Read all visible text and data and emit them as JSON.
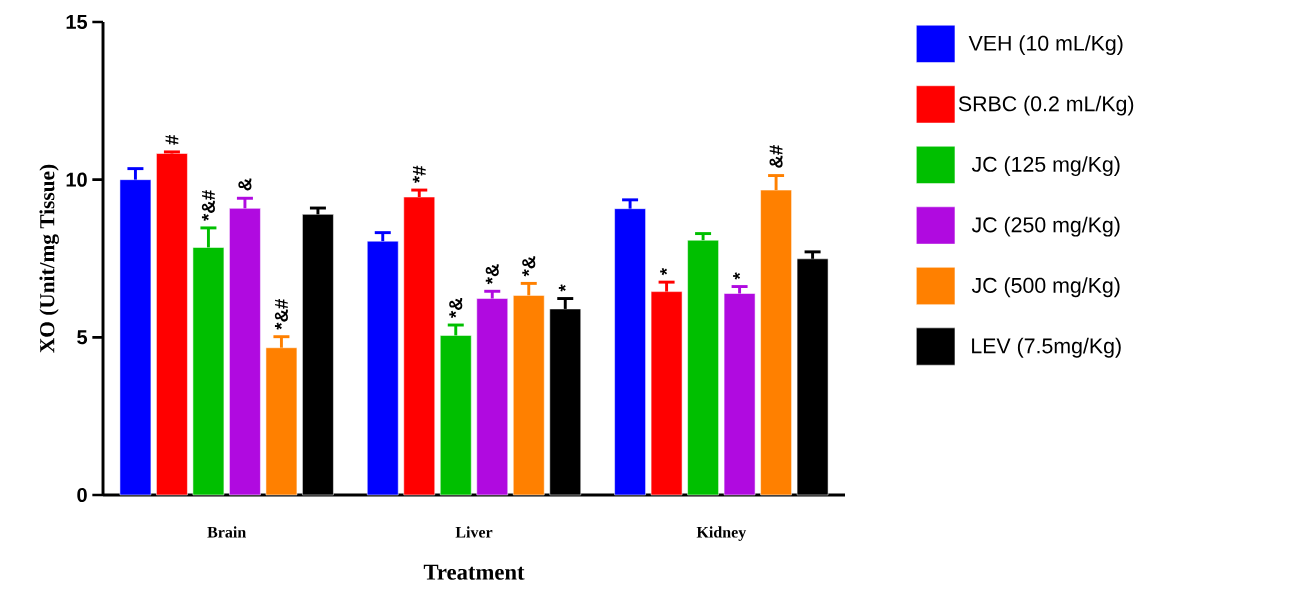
{
  "chart_data": {
    "type": "bar",
    "xlabel": "Treatment",
    "ylabel": "XO (Unit/mg Tissue)",
    "categories": [
      "Brain",
      "Liver",
      "Kidney"
    ],
    "ylim": [
      0,
      15
    ],
    "yticks": [
      0,
      5,
      10,
      15
    ],
    "legend": "right",
    "series": [
      {
        "name": "VEH (10 mL/Kg)",
        "color": "#0000ff",
        "values": [
          10.0,
          8.05,
          9.08
        ],
        "errors": [
          [
            10.0,
            10.35
          ],
          [
            8.05,
            8.32
          ],
          [
            9.08,
            9.36
          ]
        ],
        "value_labels": [
          null,
          null,
          null
        ]
      },
      {
        "name": "SRBC (0.2 mL/Kg)",
        "color": "#ff0000",
        "values": [
          10.83,
          9.45,
          6.45
        ],
        "errors": [
          [
            10.83,
            10.88
          ],
          [
            9.45,
            9.67
          ],
          [
            6.45,
            6.75
          ]
        ],
        "value_labels": [
          "#",
          "*#",
          "*"
        ]
      },
      {
        "name": "JC (125 mg/Kg)",
        "color": "#00bf00",
        "values": [
          7.85,
          5.06,
          8.08
        ],
        "errors": [
          [
            7.85,
            8.47
          ],
          [
            5.06,
            5.39
          ],
          [
            8.08,
            8.29
          ]
        ],
        "value_labels": [
          "*&#",
          "*&",
          null
        ]
      },
      {
        "name": "JC (250 mg/Kg)",
        "color": "#b00ae0",
        "values": [
          9.09,
          6.23,
          6.39
        ],
        "errors": [
          [
            9.09,
            9.41
          ],
          [
            6.23,
            6.46
          ],
          [
            6.39,
            6.61
          ]
        ],
        "value_labels": [
          "&",
          "*&",
          "*"
        ]
      },
      {
        "name": "JC (500 mg/Kg)",
        "color": "#ff8000",
        "values": [
          4.67,
          6.33,
          9.67
        ],
        "errors": [
          [
            4.67,
            5.02
          ],
          [
            6.33,
            6.71
          ],
          [
            9.67,
            10.13
          ]
        ],
        "value_labels": [
          "*&#",
          "*&",
          "&#"
        ]
      },
      {
        "name": "LEV (7.5mg/Kg)",
        "color": "#000000",
        "values": [
          8.9,
          5.9,
          7.49
        ],
        "errors": [
          [
            8.9,
            9.1
          ],
          [
            5.9,
            6.23
          ],
          [
            7.49,
            7.71
          ]
        ],
        "value_labels": [
          null,
          "*",
          null
        ]
      }
    ]
  }
}
